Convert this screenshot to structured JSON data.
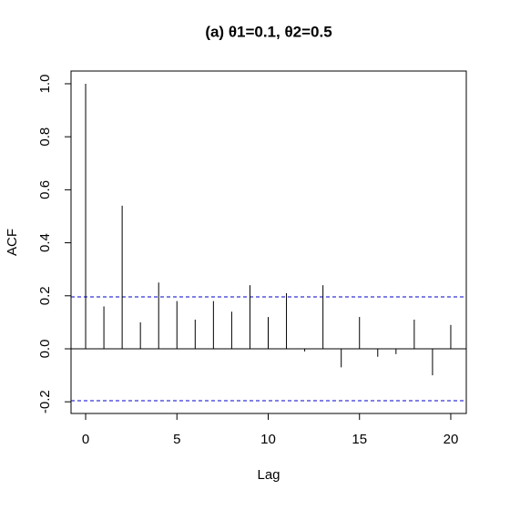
{
  "chart_data": {
    "type": "acf",
    "title": "(a)  θ1=0.1, θ2=0.5",
    "x_label": "Lag",
    "y_label": "ACF",
    "x": [
      0,
      1,
      2,
      3,
      4,
      5,
      6,
      7,
      8,
      9,
      10,
      11,
      12,
      13,
      14,
      15,
      16,
      17,
      18,
      19,
      20
    ],
    "values": [
      1.0,
      0.16,
      0.54,
      0.1,
      0.25,
      0.18,
      0.11,
      0.18,
      0.14,
      0.24,
      0.12,
      0.21,
      -0.01,
      0.24,
      -0.07,
      0.12,
      -0.03,
      -0.02,
      0.11,
      -0.1,
      0.09
    ],
    "color": "#000000",
    "confidence_bound": 0.196,
    "confidence_color": "#0000cd",
    "xlim": [
      -0.8,
      20.85
    ],
    "ylim": [
      -0.244,
      1.048
    ],
    "xticks": [
      0,
      5,
      10,
      15,
      20
    ],
    "yticks": [
      {
        "value": -0.2,
        "label": "-0.2"
      },
      {
        "value": 0,
        "label": "0.0"
      },
      0.2,
      0.4,
      0.6,
      0.8,
      {
        "value": 1,
        "label": "1.0"
      }
    ]
  }
}
